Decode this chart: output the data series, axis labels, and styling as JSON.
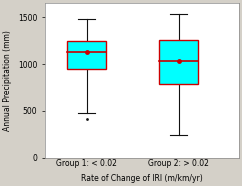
{
  "groups": [
    "Group 1: < 0.02",
    "Group 2: > 0.02"
  ],
  "xlabel": "Rate of Change of IRI (m/km/yr)",
  "ylabel": "Annual Precipitation (mm)",
  "ylim": [
    0,
    1650
  ],
  "yticks": [
    0,
    500,
    1000,
    1500
  ],
  "box1": {
    "median": 1130,
    "q1": 949,
    "q3": 1248,
    "whisker_low": 480,
    "whisker_high": 1485,
    "outliers": [
      414
    ]
  },
  "box2": {
    "median": 1034,
    "q1": 787,
    "q3": 1261,
    "whisker_low": 246,
    "whisker_high": 1541,
    "outliers": []
  },
  "box_facecolor": "#00ffff",
  "box_edgecolor": "#cc0000",
  "median_color": "#cc0000",
  "whisker_color": "#111111",
  "outlier_color": "#111111",
  "background_color": "#d4d0c8",
  "plot_bg_color": "#ffffff",
  "label_fontsize": 5.5,
  "tick_fontsize": 5.5,
  "box_width": 0.42,
  "positions": [
    1,
    2
  ],
  "xlim": [
    0.55,
    2.65
  ]
}
